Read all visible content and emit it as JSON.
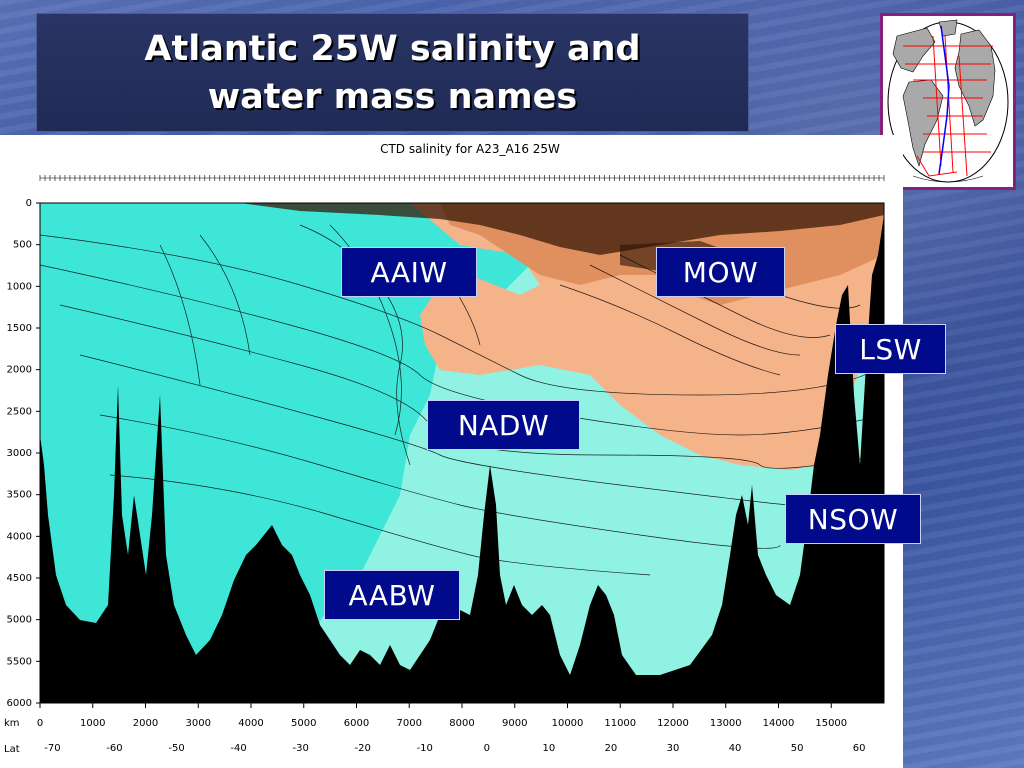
{
  "slide": {
    "title": "Atlantic 25W salinity and\nwater mass names"
  },
  "figure": {
    "caption": "CTD salinity for A23_A16 25W",
    "y_axis_ticks": [
      "0",
      "500",
      "1000",
      "1500",
      "2000",
      "2500",
      "3000",
      "3500",
      "4000",
      "4500",
      "5000",
      "5500",
      "6000"
    ],
    "km_label": "km",
    "km_ticks": [
      "0",
      "1000",
      "2000",
      "3000",
      "4000",
      "5000",
      "6000",
      "7000",
      "8000",
      "9000",
      "10000",
      "11000",
      "12000",
      "13000",
      "14000",
      "15000"
    ],
    "lat_label": "Lat",
    "lat_ticks": [
      "-70",
      "-60",
      "-50",
      "-40",
      "-30",
      "-20",
      "-10",
      "0",
      "10",
      "20",
      "30",
      "40",
      "50",
      "60"
    ],
    "colors": {
      "fresh": "#3ee6d8",
      "deep": "#8ff2e2",
      "saline": "#f5b38a",
      "very_saline": "#e0905e",
      "bathymetry": "#000000"
    }
  },
  "water_masses": [
    {
      "id": "aaiw",
      "label": "AAIW"
    },
    {
      "id": "mow",
      "label": "MOW"
    },
    {
      "id": "lsw",
      "label": "LSW"
    },
    {
      "id": "nadw",
      "label": "NADW"
    },
    {
      "id": "nsow",
      "label": "NSOW"
    },
    {
      "id": "aabw",
      "label": "AABW"
    }
  ],
  "inset_map": {
    "colors": {
      "land": "#a9a9a9",
      "track_red": "#ff0000",
      "track_blue": "#0000ff",
      "frame": "#8a1f7a"
    }
  }
}
